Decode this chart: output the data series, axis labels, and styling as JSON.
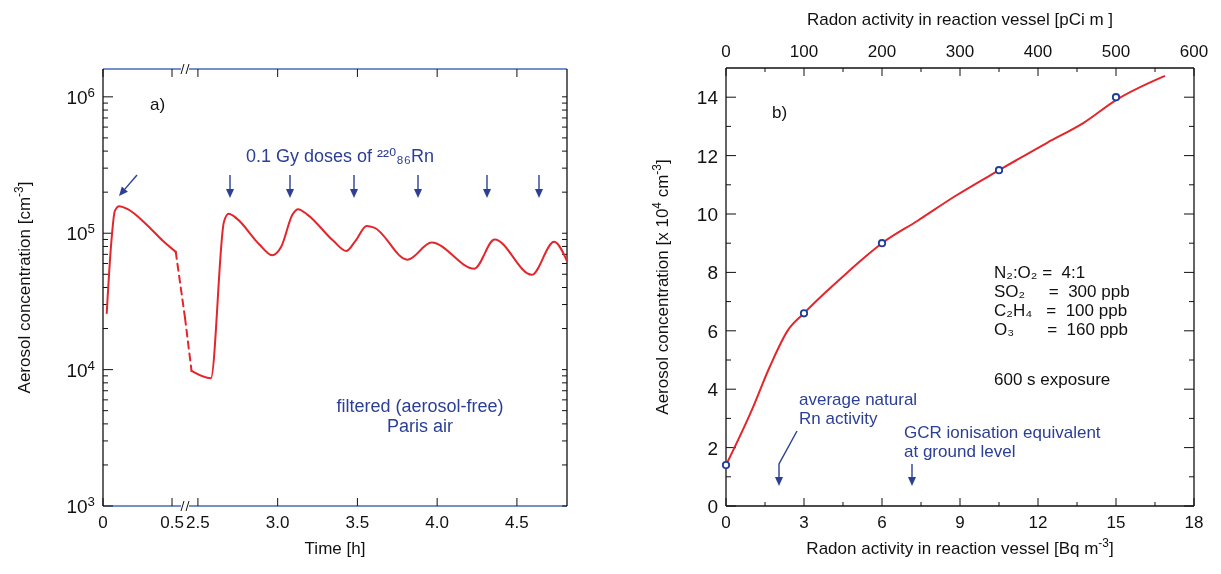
{
  "chart_data": [
    {
      "type": "line",
      "ylabel": "Aerosol concentration [cm$^{-3}$]",
      "log": "y",
      "xlim": [
        0,
        0.594
      ],
      "xticks": [
        0,
        0.5
      ],
      "ylim": [
        1000,
        1600000
      ],
      "yticks": [
        {
          "value": 1000,
          "label": "10$^{3}$"
        },
        {
          "value": 2000,
          "label": null
        },
        {
          "value": 3000,
          "label": null
        },
        {
          "value": 4000,
          "label": null
        },
        {
          "value": 5000,
          "label": null
        },
        {
          "value": 6000,
          "label": null
        },
        {
          "value": 7000,
          "label": null
        },
        {
          "value": 8000,
          "label": null
        },
        {
          "value": 9000,
          "label": null
        },
        {
          "value": 10000,
          "label": "10$^{4}$"
        },
        {
          "value": 20000,
          "label": null
        },
        {
          "value": 30000,
          "label": null
        },
        {
          "value": 40000,
          "label": null
        },
        {
          "value": 50000,
          "label": null
        },
        {
          "value": 60000,
          "label": null
        },
        {
          "value": 70000,
          "label": null
        },
        {
          "value": 80000,
          "label": null
        },
        {
          "value": 90000,
          "label": null
        },
        {
          "value": 100000,
          "label": "10$^{5}$"
        },
        {
          "value": 200000,
          "label": null
        },
        {
          "value": 300000,
          "label": null
        },
        {
          "value": 400000,
          "label": null
        },
        {
          "value": 500000,
          "label": null
        },
        {
          "value": 600000,
          "label": null
        },
        {
          "value": 700000,
          "label": null
        },
        {
          "value": 800000,
          "label": null
        },
        {
          "value": 900000,
          "label": null
        },
        {
          "value": 1000000,
          "label": "10$^{6}$"
        }
      ],
      "series": [
        {
          "color": "#e3262b",
          "line_style": "solid",
          "x": [
            0.027,
            0.059,
            0.086,
            0.118,
            0.179,
            0.326,
            0.433,
            0.527
          ],
          "values": [
            26000,
            83000,
            146000,
            158000,
            150000,
            113000,
            88000,
            73000
          ]
        },
        {
          "color": "#e3262b",
          "line_style": "dashed",
          "x": [
            0.527,
            0.594
          ],
          "values": [
            73000,
            24000
          ]
        }
      ],
      "annotations": [
        "a)"
      ]
    },
    {
      "type": "line",
      "xlabel": "Time [h]",
      "log": "y",
      "tick_labels": "x",
      "xlim": [
        2.419,
        4.814
      ],
      "xticks": [
        2.5,
        {
          "value": 3,
          "label": "3.0"
        },
        3.5,
        {
          "value": 4,
          "label": "4.0"
        },
        4.5
      ],
      "ylim": [
        1000,
        1600000
      ],
      "yticks": [
        {
          "value": 1000,
          "label": null
        },
        {
          "value": 2000,
          "label": null
        },
        {
          "value": 3000,
          "label": null
        },
        {
          "value": 4000,
          "label": null
        },
        {
          "value": 5000,
          "label": null
        },
        {
          "value": 6000,
          "label": null
        },
        {
          "value": 7000,
          "label": null
        },
        {
          "value": 8000,
          "label": null
        },
        {
          "value": 9000,
          "label": null
        },
        {
          "value": 10000,
          "label": null
        },
        {
          "value": 20000,
          "label": null
        },
        {
          "value": 30000,
          "label": null
        },
        {
          "value": 40000,
          "label": null
        },
        {
          "value": 50000,
          "label": null
        },
        {
          "value": 60000,
          "label": null
        },
        {
          "value": 70000,
          "label": null
        },
        {
          "value": 80000,
          "label": null
        },
        {
          "value": 90000,
          "label": null
        },
        {
          "value": 100000,
          "label": null
        },
        {
          "value": 200000,
          "label": null
        },
        {
          "value": 300000,
          "label": null
        },
        {
          "value": 400000,
          "label": null
        },
        {
          "value": 500000,
          "label": null
        },
        {
          "value": 600000,
          "label": null
        },
        {
          "value": 700000,
          "label": null
        },
        {
          "value": 800000,
          "label": null
        },
        {
          "value": 900000,
          "label": null
        },
        {
          "value": 1000000,
          "label": null
        }
      ],
      "series": [
        {
          "color": "#e3262b",
          "line_style": "dashed",
          "x": [
            2.419,
            2.46
          ],
          "values": [
            24000,
            9800
          ]
        },
        {
          "color": "#e3262b",
          "line_style": "solid",
          "x": [
            2.46,
            2.581,
            2.663,
            2.693,
            2.744,
            2.884,
            2.965,
            3.023,
            3.093,
            3.128,
            3.186,
            3.349,
            3.43,
            3.488,
            3.558,
            3.605,
            3.814,
            3.965,
            4.233,
            4.36,
            4.593,
            4.733,
            4.814
          ],
          "values": [
            9800,
            8650,
            121000,
            139000,
            128000,
            83000,
            69000,
            80000,
            137000,
            150000,
            137000,
            88000,
            74000,
            88000,
            113000,
            110000,
            64000,
            85500,
            55000,
            90000,
            49600,
            86500,
            62500
          ]
        }
      ],
      "annotations": [
        "0.1 Gy doses of ²²⁰₈₆Rn",
        "filtered (aerosol-free)\nParis air"
      ]
    },
    {
      "type": "line",
      "xlabel": "Radon activity in reaction vessel [Bq m$^{-3}$]",
      "x2label": "Radon activity in reaction vessel [pCi m  ]",
      "ylabel": "Aerosol concentration [x 10$^{4}$ cm$^{-3}$]",
      "xlim": [
        0,
        18
      ],
      "xticks": [
        0,
        {
          "value": 1.5,
          "label": null
        },
        3,
        {
          "value": 4.5,
          "label": null
        },
        6,
        {
          "value": 7.5,
          "label": null
        },
        9,
        {
          "value": 10.5,
          "label": null
        },
        12,
        {
          "value": 13.5,
          "label": null
        },
        15,
        {
          "value": 16.5,
          "label": null
        },
        18
      ],
      "x2lim": [
        0,
        600
      ],
      "x2ticks": [
        0,
        {
          "value": 50,
          "label": null
        },
        100,
        {
          "value": 150,
          "label": null
        },
        200,
        {
          "value": 250,
          "label": null
        },
        300,
        {
          "value": 350,
          "label": null
        },
        400,
        {
          "value": 450,
          "label": null
        },
        500,
        {
          "value": 550,
          "label": null
        },
        600
      ],
      "ylim": [
        0,
        15
      ],
      "yticks": [
        0,
        {
          "value": 1,
          "label": null
        },
        2,
        {
          "value": 3,
          "label": null
        },
        4,
        {
          "value": 5,
          "label": null
        },
        6,
        {
          "value": 7,
          "label": null
        },
        8,
        {
          "value": 9,
          "label": null
        },
        10,
        {
          "value": 11,
          "label": null
        },
        12,
        {
          "value": 13,
          "label": null
        },
        14
      ],
      "series": [
        {
          "color": "#e3262b",
          "x": [
            0,
            0.97,
            1.68,
            2.39,
            3,
            3.81,
            4.67,
            6,
            7.37,
            8.79,
            10.5,
            12.35,
            13.77,
            15,
            16.86
          ],
          "values": [
            1.4,
            3.24,
            4.76,
            6.03,
            6.6,
            7.3,
            8.0,
            9.0,
            9.77,
            10.6,
            11.5,
            12.44,
            13.13,
            13.9,
            14.72
          ]
        },
        {
          "type": "scatter",
          "marker": "circle",
          "color": "#1f3d99",
          "x": [
            0,
            3,
            6,
            10.5,
            15
          ],
          "values": [
            1.4,
            6.6,
            9.0,
            11.5,
            14.0
          ]
        }
      ],
      "annotations": [
        "b)",
        "N₂:O₂ =  4:1\nSO₂     =  300 ppb\nC₂H₄   =  100 ppb\nO₃       =  160 ppb",
        "600 s exposure",
        "average natural\nRn activity",
        "GCR ionisation equivalent\nat ground level"
      ]
    }
  ]
}
